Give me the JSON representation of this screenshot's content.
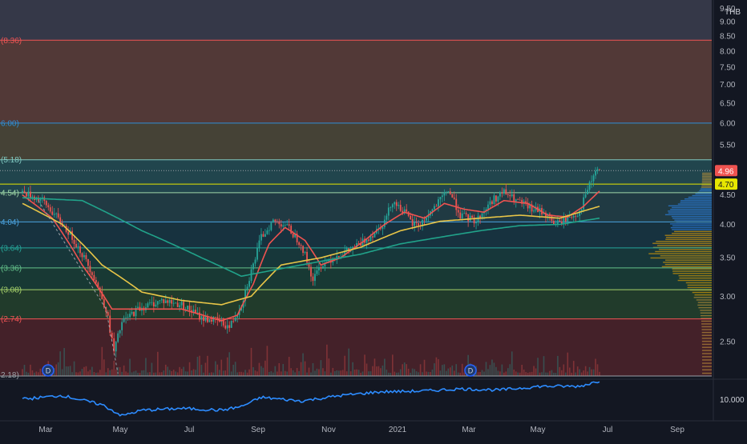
{
  "currency": "THB",
  "colors": {
    "background": "#131722",
    "grid": "#1e222d",
    "candle_up": "#26a69a",
    "candle_down": "#ef5350",
    "sma_fast": "#ef5350",
    "sma_mid": "#e8c547",
    "sma_slow": "#21a38a",
    "price_line": "#e0e0e0",
    "indicator": "#2d8cff"
  },
  "chart_data": {
    "type": "candlestick",
    "title": "",
    "ylim": [
      2.18,
      9.82
    ],
    "y_scale": "log",
    "y_ticks": [
      "9.50",
      "9.00",
      "8.50",
      "8.00",
      "7.50",
      "7.00",
      "6.50",
      "6.00",
      "5.50",
      "5.00",
      "4.50",
      "4.00",
      "3.50",
      "3.00",
      "2.50"
    ],
    "x_ticks": [
      "Mar",
      "May",
      "Jul",
      "Sep",
      "Nov",
      "2021",
      "Mar",
      "May",
      "Jul",
      "Sep"
    ],
    "last_price": "4.96",
    "ref_price": "4.70",
    "fib_levels": [
      {
        "value": 8.36,
        "label": "(8.36)",
        "color": "#f05454",
        "fill": "#5a3d3a"
      },
      {
        "value": 6.0,
        "label": "6.00)",
        "color": "#2f8fd6",
        "fill": "#4b4738"
      },
      {
        "value": 5.18,
        "label": "(5.18)",
        "color": "#7fc8c0",
        "fill": "#244a52"
      },
      {
        "value": 4.54,
        "label": "4.54)",
        "color": "#9fd8a8",
        "fill": "#223e47"
      },
      {
        "value": 4.04,
        "label": "4.04)",
        "color": "#4aa3e0",
        "fill": "#183542"
      },
      {
        "value": 3.64,
        "label": "(3.64)",
        "color": "#26a69a",
        "fill": "#183b3d"
      },
      {
        "value": 3.36,
        "label": "(3.36)",
        "color": "#63c08b",
        "fill": "#1a3d36"
      },
      {
        "value": 3.08,
        "label": "(3.08)",
        "color": "#a8d46b",
        "fill": "#243f2c"
      },
      {
        "value": 2.74,
        "label": "(2.74)",
        "color": "#f05454",
        "fill": "#4a222a"
      },
      {
        "value": 2.18,
        "label": "2.18)",
        "color": "#9aa0a6",
        "fill": null
      }
    ],
    "series": [
      {
        "name": "",
        "type": "candle",
        "anchors": [
          [
            0,
            4.55
          ],
          [
            10,
            4.4
          ],
          [
            25,
            3.8
          ],
          [
            35,
            3.3
          ],
          [
            42,
            2.85
          ],
          [
            46,
            2.4
          ],
          [
            50,
            2.7
          ],
          [
            58,
            2.85
          ],
          [
            70,
            2.95
          ],
          [
            80,
            2.9
          ],
          [
            90,
            2.75
          ],
          [
            98,
            2.72
          ],
          [
            104,
            2.65
          ],
          [
            110,
            2.9
          ],
          [
            116,
            3.4
          ],
          [
            120,
            3.8
          ],
          [
            126,
            4.05
          ],
          [
            132,
            4.0
          ],
          [
            140,
            3.7
          ],
          [
            146,
            3.2
          ],
          [
            150,
            3.4
          ],
          [
            156,
            3.5
          ],
          [
            164,
            3.6
          ],
          [
            170,
            3.7
          ],
          [
            176,
            3.85
          ],
          [
            182,
            4.05
          ],
          [
            186,
            4.4
          ],
          [
            192,
            4.2
          ],
          [
            196,
            4.0
          ],
          [
            200,
            4.0
          ],
          [
            205,
            4.2
          ],
          [
            210,
            4.4
          ],
          [
            214,
            4.6
          ],
          [
            220,
            4.15
          ],
          [
            228,
            4.05
          ],
          [
            236,
            4.4
          ],
          [
            242,
            4.55
          ],
          [
            248,
            4.4
          ],
          [
            256,
            4.25
          ],
          [
            262,
            4.2
          ],
          [
            268,
            4.0
          ],
          [
            274,
            4.1
          ],
          [
            280,
            4.2
          ],
          [
            284,
            4.6
          ],
          [
            286,
            4.75
          ],
          [
            288,
            4.96
          ]
        ]
      },
      {
        "name": "",
        "type": "line",
        "color": "#ef5350",
        "anchors": [
          [
            0,
            4.5
          ],
          [
            15,
            4.1
          ],
          [
            30,
            3.4
          ],
          [
            45,
            2.85
          ],
          [
            60,
            2.85
          ],
          [
            80,
            2.85
          ],
          [
            100,
            2.72
          ],
          [
            108,
            2.78
          ],
          [
            116,
            3.15
          ],
          [
            124,
            3.7
          ],
          [
            132,
            3.95
          ],
          [
            142,
            3.75
          ],
          [
            150,
            3.4
          ],
          [
            160,
            3.5
          ],
          [
            172,
            3.75
          ],
          [
            182,
            4.0
          ],
          [
            192,
            4.2
          ],
          [
            202,
            4.1
          ],
          [
            212,
            4.35
          ],
          [
            222,
            4.25
          ],
          [
            232,
            4.2
          ],
          [
            242,
            4.4
          ],
          [
            254,
            4.35
          ],
          [
            264,
            4.15
          ],
          [
            274,
            4.12
          ],
          [
            282,
            4.3
          ],
          [
            290,
            4.57
          ]
        ]
      },
      {
        "name": "",
        "type": "line",
        "color": "#e8c547",
        "anchors": [
          [
            0,
            4.35
          ],
          [
            20,
            4.0
          ],
          [
            40,
            3.4
          ],
          [
            60,
            3.05
          ],
          [
            80,
            2.95
          ],
          [
            100,
            2.9
          ],
          [
            115,
            3.0
          ],
          [
            130,
            3.4
          ],
          [
            150,
            3.5
          ],
          [
            170,
            3.65
          ],
          [
            190,
            3.9
          ],
          [
            210,
            4.05
          ],
          [
            230,
            4.1
          ],
          [
            250,
            4.15
          ],
          [
            270,
            4.1
          ],
          [
            290,
            4.3
          ]
        ]
      },
      {
        "name": "",
        "type": "line",
        "color": "#21a38a",
        "anchors": [
          [
            0,
            4.45
          ],
          [
            30,
            4.4
          ],
          [
            60,
            3.9
          ],
          [
            90,
            3.5
          ],
          [
            110,
            3.25
          ],
          [
            130,
            3.35
          ],
          [
            150,
            3.45
          ],
          [
            170,
            3.55
          ],
          [
            190,
            3.7
          ],
          [
            210,
            3.8
          ],
          [
            230,
            3.9
          ],
          [
            250,
            3.98
          ],
          [
            270,
            4.0
          ],
          [
            290,
            4.1
          ]
        ]
      }
    ],
    "indicator": {
      "tick_label": "10.000",
      "color": "#2d8cff",
      "anchors": [
        [
          0,
          0.5
        ],
        [
          20,
          0.6
        ],
        [
          40,
          0.35
        ],
        [
          50,
          0.05
        ],
        [
          60,
          0.2
        ],
        [
          80,
          0.25
        ],
        [
          100,
          0.2
        ],
        [
          110,
          0.3
        ],
        [
          120,
          0.55
        ],
        [
          140,
          0.45
        ],
        [
          160,
          0.6
        ],
        [
          180,
          0.7
        ],
        [
          200,
          0.72
        ],
        [
          220,
          0.78
        ],
        [
          240,
          0.75
        ],
        [
          260,
          0.85
        ],
        [
          280,
          0.85
        ],
        [
          290,
          1.0
        ]
      ]
    },
    "dividend_markers": [
      "D",
      "D"
    ]
  }
}
